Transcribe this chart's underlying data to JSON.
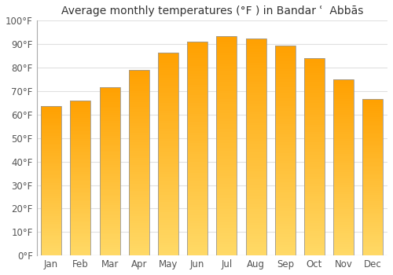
{
  "title": "Average monthly temperatures (°F ) in Bandar ʿ  Abbās",
  "months": [
    "Jan",
    "Feb",
    "Mar",
    "Apr",
    "May",
    "Jun",
    "Jul",
    "Aug",
    "Sep",
    "Oct",
    "Nov",
    "Dec"
  ],
  "values": [
    63.5,
    66.0,
    71.5,
    79.0,
    86.5,
    91.0,
    93.5,
    92.5,
    89.5,
    84.0,
    75.0,
    66.5
  ],
  "bar_color_top": "#FFA000",
  "bar_color_bottom": "#FFD966",
  "bar_edge_color": "#999999",
  "background_color": "#ffffff",
  "ylim": [
    0,
    100
  ],
  "yticks": [
    0,
    10,
    20,
    30,
    40,
    50,
    60,
    70,
    80,
    90,
    100
  ],
  "ytick_labels": [
    "0°F",
    "10°F",
    "20°F",
    "30°F",
    "40°F",
    "50°F",
    "60°F",
    "70°F",
    "80°F",
    "90°F",
    "100°F"
  ],
  "title_fontsize": 10,
  "tick_fontsize": 8.5,
  "grid_color": "#e0e0e0",
  "bar_width": 0.7
}
